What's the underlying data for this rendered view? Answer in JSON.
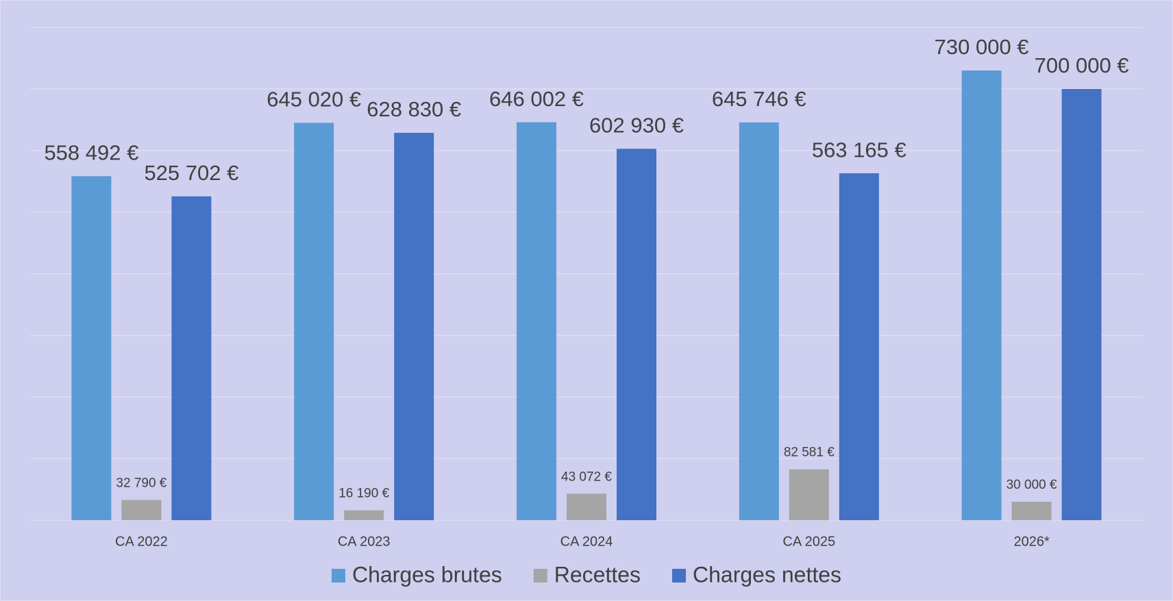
{
  "chart_data": {
    "type": "bar",
    "categories": [
      "CA 2022",
      "CA 2023",
      "CA 2024",
      "CA 2025",
      "2026*"
    ],
    "series": [
      {
        "name": "Charges brutes",
        "color": "#5b9bd5",
        "values": [
          558492,
          645020,
          646002,
          645746,
          730000
        ],
        "value_labels": [
          "558 492 €",
          "645 020 €",
          "646 002 €",
          "645 746 €",
          "730 000 €"
        ]
      },
      {
        "name": "Recettes",
        "color": "#a5a5a5",
        "values": [
          32790,
          16190,
          43072,
          82581,
          30000
        ],
        "value_labels": [
          "32 790 €",
          "16 190 €",
          "43 072 €",
          "82 581 €",
          "30 000 €"
        ]
      },
      {
        "name": "Charges nettes",
        "color": "#4472c4",
        "values": [
          525702,
          628830,
          602930,
          563165,
          700000
        ],
        "value_labels": [
          "525 702 €",
          "628 830 €",
          "602 930 €",
          "563 165 €",
          "700 000 €"
        ]
      }
    ],
    "ylim": [
      0,
      800000
    ],
    "yticks": [
      0,
      100000,
      200000,
      300000,
      400000,
      500000,
      600000,
      700000,
      800000
    ],
    "grid": true,
    "legend": "bottom"
  }
}
